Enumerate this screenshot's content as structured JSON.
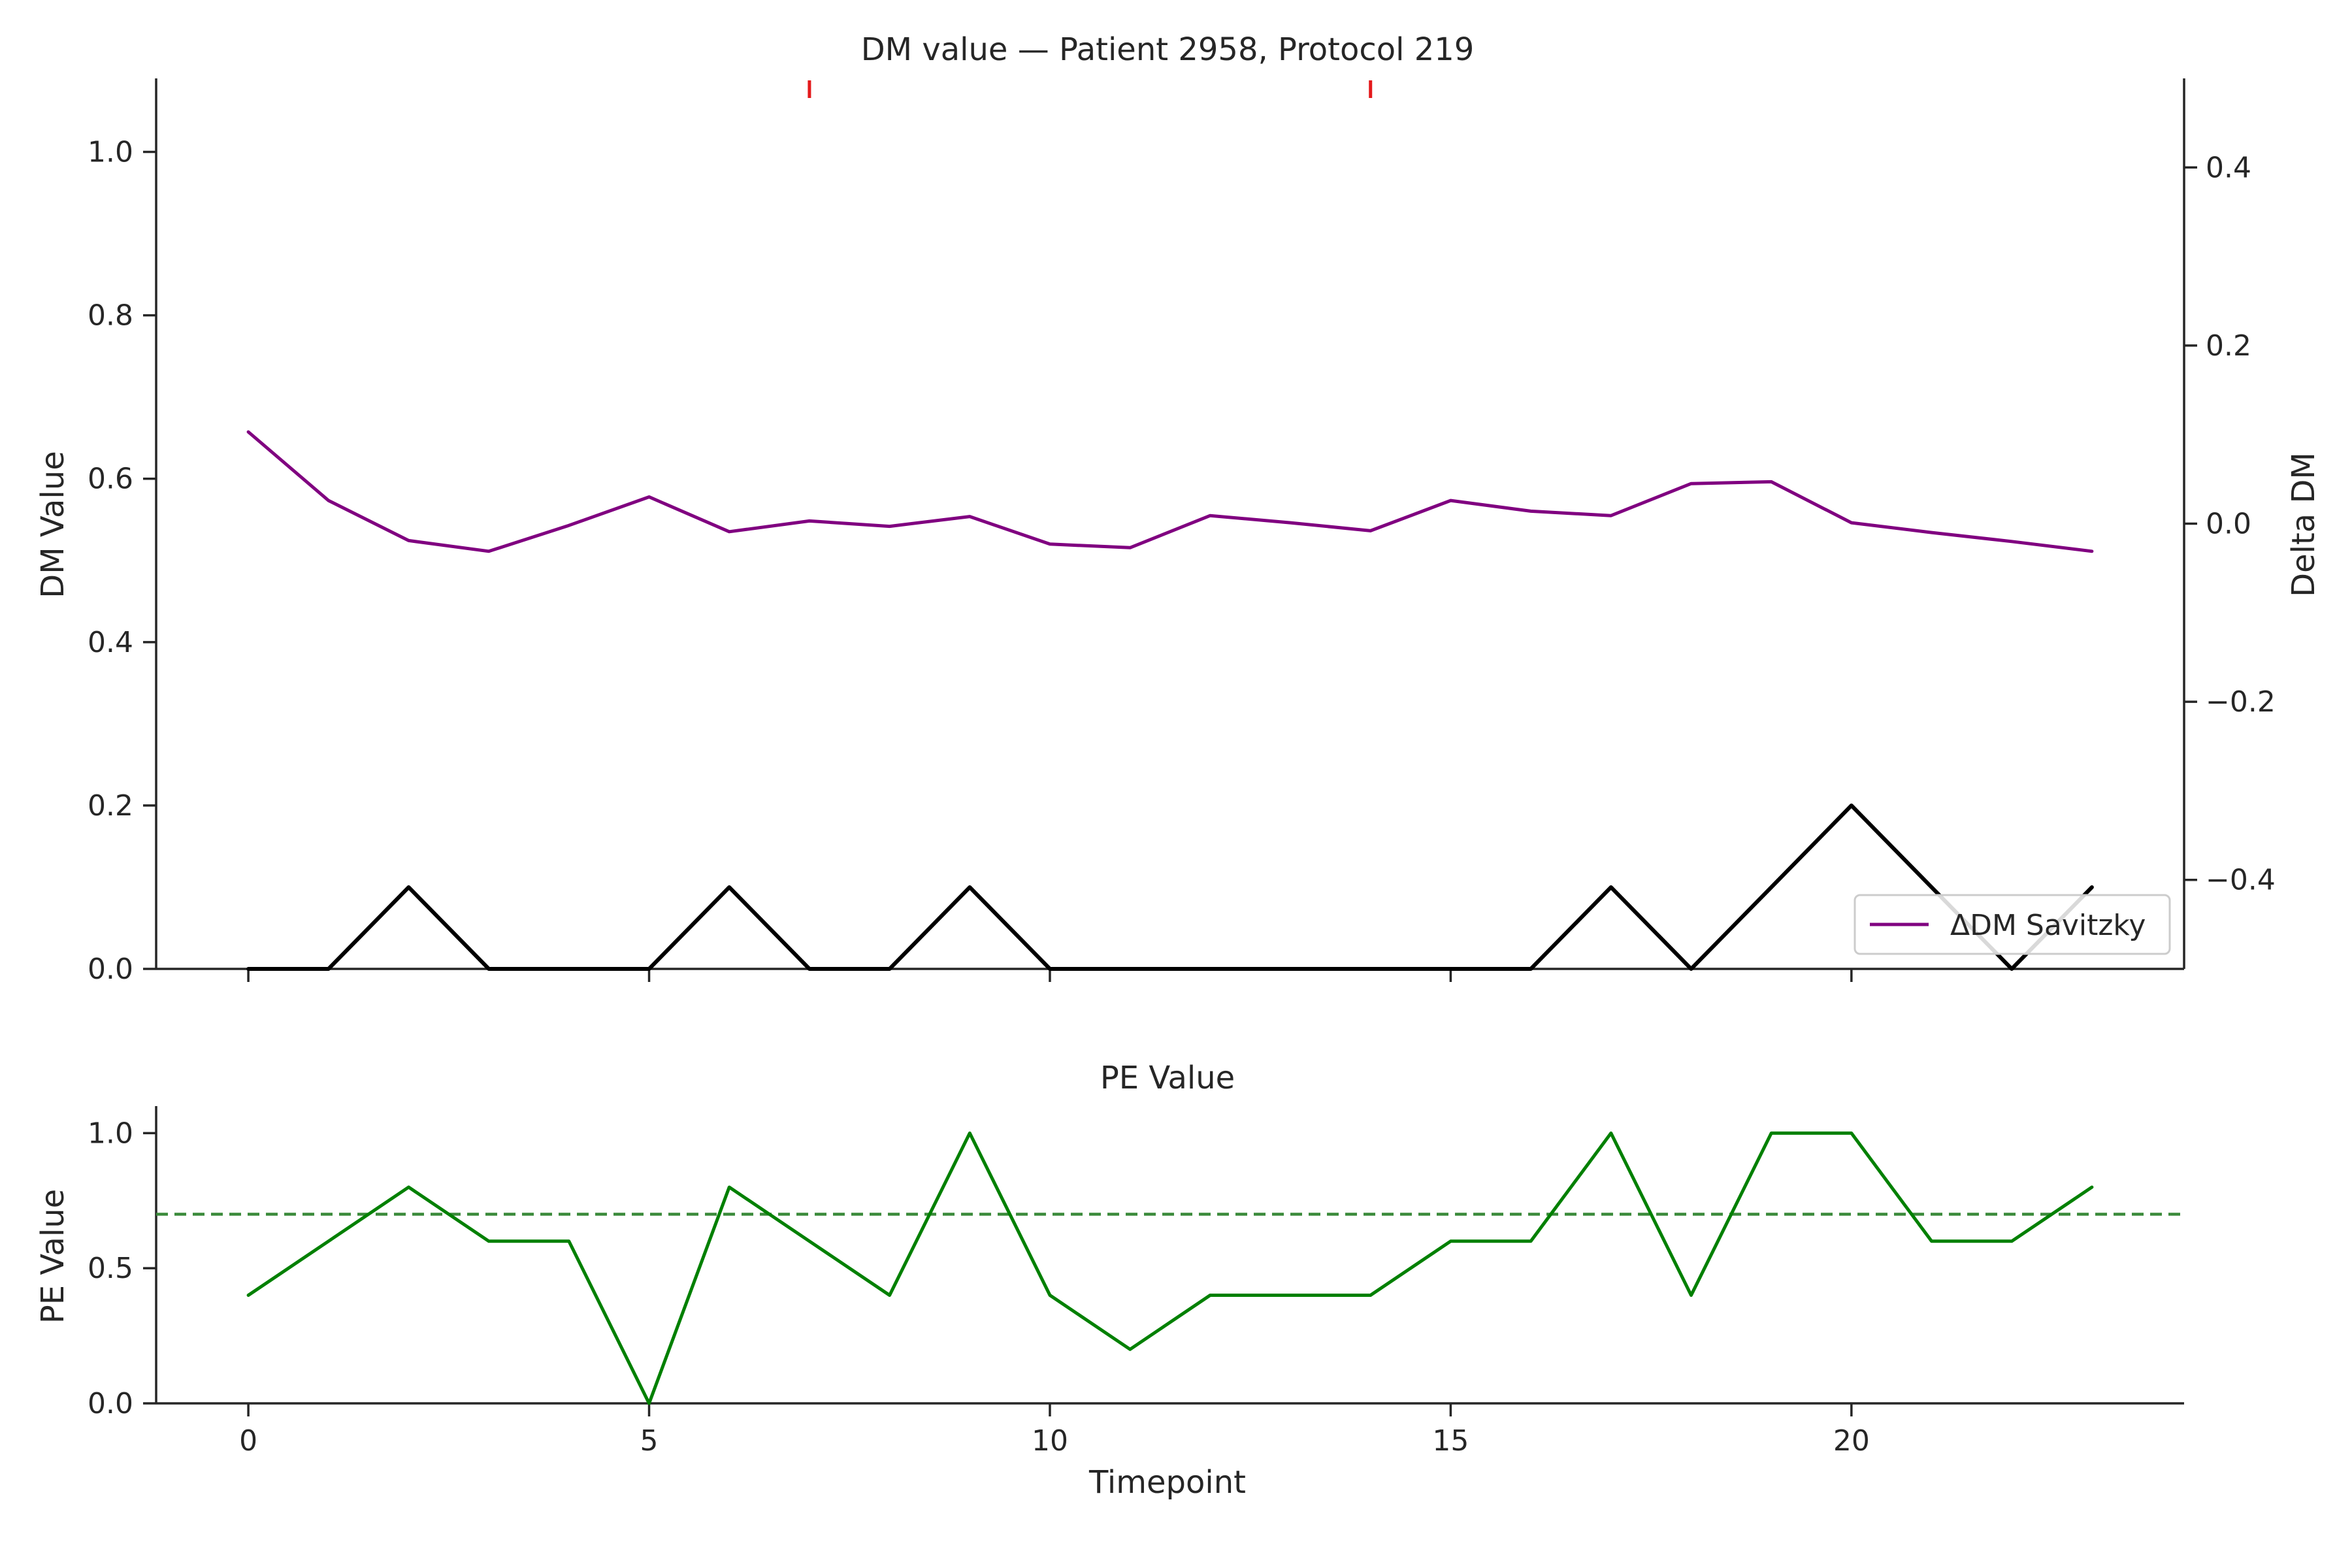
{
  "chart_data": [
    {
      "type": "line",
      "title": "DM value — Patient 2958, Protocol 219",
      "xlabel": "",
      "ylabel": "DM Value",
      "y2label": "Delta DM",
      "xlim": [
        -1.15,
        24.15
      ],
      "ylim": [
        0.0,
        1.09
      ],
      "y2lim": [
        -0.5,
        0.5
      ],
      "x": [
        0,
        1,
        2,
        3,
        4,
        5,
        6,
        7,
        8,
        9,
        10,
        11,
        12,
        13,
        14,
        15,
        16,
        17,
        18,
        19,
        20,
        21,
        22,
        23
      ],
      "xticks": [
        0,
        5,
        10,
        15,
        20
      ],
      "xtick_labels": [
        "",
        "",
        "",
        "",
        ""
      ],
      "yticks": [
        0.0,
        0.2,
        0.4,
        0.6,
        0.8,
        1.0
      ],
      "ytick_labels": [
        "0.0",
        "0.2",
        "0.4",
        "0.6",
        "0.8",
        "1.0"
      ],
      "y2ticks": [
        -0.4,
        -0.2,
        0.0,
        0.2,
        0.4
      ],
      "y2tick_labels": [
        "−0.4",
        "−0.2",
        "0.0",
        "0.2",
        "0.4"
      ],
      "series": [
        {
          "axis": "left",
          "color": "#000000",
          "values": [
            0.0,
            0.0,
            0.1,
            0.0,
            0.0,
            0.0,
            0.1,
            0.0,
            0.0,
            0.1,
            0.0,
            0.0,
            0.0,
            0.0,
            0.0,
            0.0,
            0.0,
            0.1,
            0.0,
            0.1,
            0.2,
            0.1,
            0.0,
            0.1
          ]
        },
        {
          "axis": "right",
          "name": "ΔDM Savitzky",
          "color": "#800080",
          "values": [
            0.103,
            0.026,
            -0.019,
            -0.031,
            -0.002,
            0.03,
            -0.009,
            0.003,
            -0.003,
            0.008,
            -0.023,
            -0.027,
            0.009,
            0.001,
            -0.008,
            0.026,
            0.014,
            0.009,
            0.045,
            0.047,
            0.001,
            -0.01,
            -0.02,
            -0.031
          ]
        }
      ],
      "event_markers": {
        "x": [
          7,
          14
        ],
        "color": "#e41a1c"
      },
      "legend": {
        "position": "lower-right",
        "entries": [
          "ΔDM Savitzky"
        ]
      },
      "grid": false
    },
    {
      "type": "line",
      "title": "PE Value",
      "xlabel": "Timepoint",
      "ylabel": "PE Value",
      "xlim": [
        -1.15,
        24.15
      ],
      "ylim": [
        0.0,
        1.1
      ],
      "x": [
        0,
        1,
        2,
        3,
        4,
        5,
        6,
        7,
        8,
        9,
        10,
        11,
        12,
        13,
        14,
        15,
        16,
        17,
        18,
        19,
        20,
        21,
        22,
        23
      ],
      "xticks": [
        0,
        5,
        10,
        15,
        20
      ],
      "xtick_labels": [
        "0",
        "5",
        "10",
        "15",
        "20"
      ],
      "yticks": [
        0.0,
        0.5,
        1.0
      ],
      "ytick_labels": [
        "0.0",
        "0.5",
        "1.0"
      ],
      "series": [
        {
          "color": "#008000",
          "values": [
            0.4,
            0.6,
            0.8,
            0.6,
            0.6,
            0.0,
            0.8,
            0.6,
            0.4,
            1.0,
            0.4,
            0.2,
            0.4,
            0.4,
            0.4,
            0.6,
            0.6,
            1.0,
            0.4,
            1.0,
            1.0,
            0.6,
            0.6,
            0.8
          ]
        }
      ],
      "threshold": {
        "y": 0.7,
        "style": "dashed",
        "color": "#3a8a3a"
      },
      "grid": false
    }
  ]
}
